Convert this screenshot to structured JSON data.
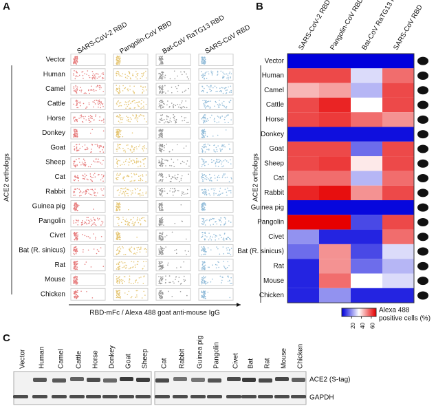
{
  "panel_a": {
    "label": "A",
    "columns": [
      "SARS-CoV-2 RBD",
      "Pangolin-CoV RBD",
      "Bat-CoV RaTG13 RBD",
      "SARS-CoV RBD"
    ],
    "rows": [
      "Vector",
      "Human",
      "Camel",
      "Cattle",
      "Horse",
      "Donkey",
      "Goat",
      "Sheep",
      "Cat",
      "Rabbit",
      "Guinea pig",
      "Pangolin",
      "Civet",
      "Bat (R. sinicus)",
      "Rat",
      "Mouse",
      "Chicken"
    ],
    "y_label": "ACE2 orthologs",
    "x_label": "RBD-mFc / Alexa 488 goat anti-mouse IgG"
  },
  "panel_b": {
    "label": "B",
    "columns": [
      "SARS-CoV-2 RBD",
      "Pangolin-CoV RBD",
      "Bat-CoV RaTG13 RBD",
      "SARS-CoV RBD"
    ],
    "rows": [
      "Vector",
      "Human",
      "Camel",
      "Cattle",
      "Horse",
      "Donkey",
      "Goat",
      "Sheep",
      "Cat",
      "Rabbit",
      "Guinea pig",
      "Pangolin",
      "Civet",
      "Bat (R. sinicus)",
      "Rat",
      "Mouse",
      "Chicken"
    ],
    "y_label": "ACE2 orthologs",
    "values": [
      [
        0,
        0,
        0,
        0
      ],
      [
        60,
        60,
        30,
        55
      ],
      [
        45,
        48,
        25,
        60
      ],
      [
        60,
        65,
        35,
        60
      ],
      [
        60,
        62,
        55,
        50
      ],
      [
        2,
        2,
        2,
        2
      ],
      [
        60,
        60,
        15,
        60
      ],
      [
        60,
        62,
        38,
        60
      ],
      [
        55,
        55,
        25,
        55
      ],
      [
        65,
        68,
        50,
        60
      ],
      [
        1,
        1,
        1,
        1
      ],
      [
        70,
        72,
        10,
        60
      ],
      [
        20,
        5,
        5,
        55
      ],
      [
        15,
        50,
        10,
        30
      ],
      [
        5,
        50,
        15,
        25
      ],
      [
        5,
        55,
        35,
        30
      ],
      [
        5,
        20,
        5,
        5
      ]
    ],
    "colorbar": {
      "lim": [
        0,
        70
      ],
      "ticks": [
        20,
        40,
        60
      ],
      "title": [
        "Alexa 488",
        "positive cells (%)"
      ]
    }
  },
  "panel_c": {
    "label": "C",
    "lanes": [
      "Vector",
      "Human",
      "Camel",
      "Cattle",
      "Horse",
      "Donkey",
      "Goat",
      "Sheep",
      "Cat",
      "Rabbit",
      "Guinea pig",
      "Pangolin",
      "Civet",
      "Bat",
      "Rat",
      "Mouse",
      "Chicken"
    ],
    "bands": [
      "ACE2 (S-tag)",
      "GAPDH"
    ]
  }
}
